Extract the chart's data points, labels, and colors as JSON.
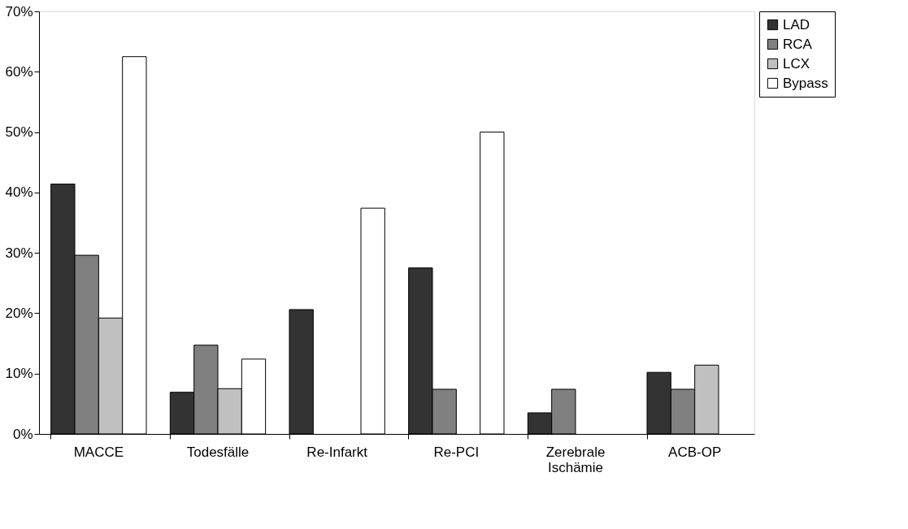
{
  "chart_data": {
    "type": "bar",
    "categories": [
      "MACCE",
      "Todesfälle",
      "Re-Infarkt",
      "Re-PCI",
      "Zerebrale Ischämie",
      "ACB-OP"
    ],
    "series": [
      {
        "name": "LAD",
        "color": "#333333",
        "values": [
          41.4,
          6.9,
          20.6,
          27.5,
          3.5,
          10.2
        ]
      },
      {
        "name": "RCA",
        "color": "#808080",
        "values": [
          29.6,
          14.7,
          null,
          7.4,
          7.4,
          7.4
        ]
      },
      {
        "name": "LCX",
        "color": "#c0c0c0",
        "values": [
          19.2,
          7.5,
          null,
          null,
          null,
          11.4
        ]
      },
      {
        "name": "Bypass",
        "color": "#ffffff",
        "values": [
          62.5,
          12.4,
          37.4,
          50.0,
          null,
          null
        ]
      }
    ],
    "ylim": [
      0,
      70
    ],
    "yticks": [
      {
        "value": 0,
        "label": "0%"
      },
      {
        "value": 10,
        "label": "10%"
      },
      {
        "value": 20,
        "label": "20%"
      },
      {
        "value": 30,
        "label": "30%"
      },
      {
        "value": 40,
        "label": "40%"
      },
      {
        "value": 50,
        "label": "50%"
      },
      {
        "value": 60,
        "label": "60%"
      },
      {
        "value": 70,
        "label": "70%"
      }
    ],
    "grid": false,
    "legend": "right"
  }
}
